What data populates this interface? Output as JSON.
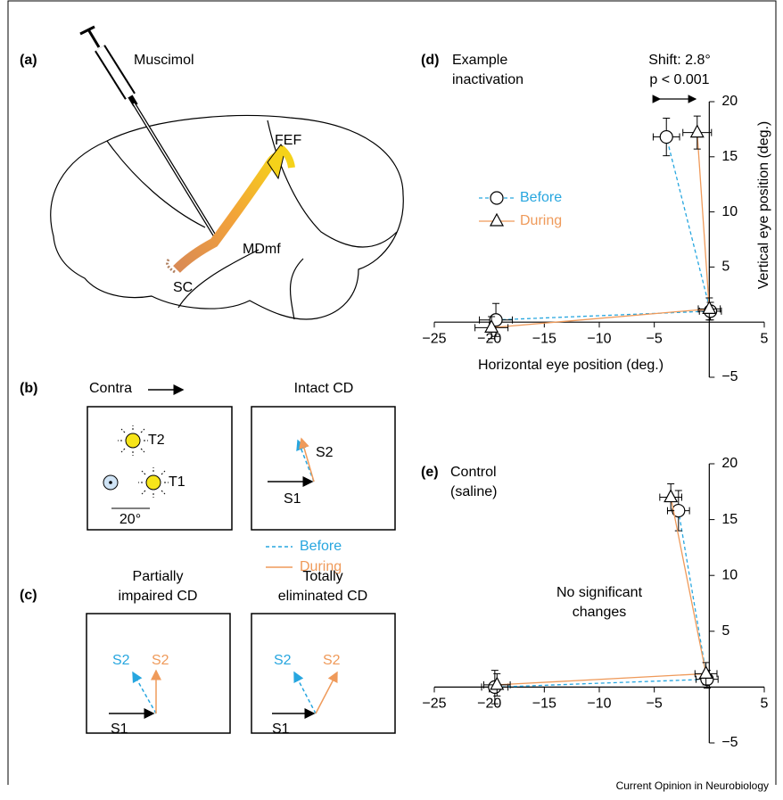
{
  "panel_a": {
    "label": "(a)",
    "drug": "Muscimol",
    "fef": "FEF",
    "mdmf": "MDmf",
    "sc": "SC"
  },
  "panel_b": {
    "label": "(b)",
    "direction": "Contra",
    "t2": "T2",
    "t1": "T1",
    "scale": "20°",
    "title": "Intact CD",
    "s2": "S2",
    "s1": "S1",
    "legend": [
      "Before",
      "During"
    ]
  },
  "panel_c": {
    "label": "(c)",
    "left_title": [
      "Partially",
      "impaired CD"
    ],
    "right_title": [
      "Totally",
      "eliminated CD"
    ],
    "left_s2": [
      "S2",
      "S2"
    ],
    "left_s1": "S1",
    "right_s2": [
      "S2",
      "S2"
    ],
    "right_s1": "S1"
  },
  "credit": "Current Opinion in Neurobiology",
  "chart_data": [
    {
      "type": "line",
      "label": "(d)",
      "title": [
        "Example",
        "inactivation"
      ],
      "annotation": [
        "Shift: 2.8°",
        "p < 0.001"
      ],
      "xlabel": "Horizontal eye position (deg.)",
      "ylabel": "Vertical eye position (deg.)",
      "xlim": [
        -25,
        5
      ],
      "ylim": [
        -5,
        20
      ],
      "xticks": [
        {
          "value": -25,
          "label": "−25"
        },
        {
          "value": -20,
          "label": "−20"
        },
        {
          "value": -15,
          "label": "−15"
        },
        {
          "value": -10,
          "label": "−10"
        },
        {
          "value": -5,
          "label": "−5"
        },
        5
      ],
      "yticks": [
        {
          "value": -5,
          "label": "−5"
        },
        5,
        10,
        15,
        20
      ],
      "legend": true,
      "series": [
        {
          "name": "Before",
          "color": "#27a6df",
          "marker": "circle",
          "dashed": true,
          "x": [
            -19.4,
            0.1,
            -3.9
          ],
          "values": [
            0.2,
            1.0,
            16.8
          ],
          "xerr": [
            1.5,
            1.0,
            1.2
          ],
          "yerr": [
            1.5,
            0.8,
            1.7
          ]
        },
        {
          "name": "During",
          "color": "#ef9a5a",
          "marker": "triangle",
          "dashed": false,
          "x": [
            -19.8,
            0,
            -1.1
          ],
          "values": [
            -0.5,
            1.2,
            17.2
          ],
          "xerr": [
            1.5,
            1.0,
            1.3
          ],
          "yerr": [
            1.0,
            1.0,
            1.5
          ]
        }
      ]
    },
    {
      "type": "line",
      "label": "(e)",
      "title": [
        "Control",
        "(saline)"
      ],
      "annotation": [
        "No significant",
        "changes"
      ],
      "xlim": [
        -25,
        5
      ],
      "ylim": [
        -5,
        20
      ],
      "xticks": [
        {
          "value": -25,
          "label": "−25"
        },
        {
          "value": -20,
          "label": "−20"
        },
        {
          "value": -15,
          "label": "−15"
        },
        {
          "value": -10,
          "label": "−10"
        },
        {
          "value": -5,
          "label": "−5"
        },
        5
      ],
      "yticks": [
        {
          "value": -5,
          "label": "−5"
        },
        5,
        10,
        15,
        20
      ],
      "legend": false,
      "series": [
        {
          "name": "Before",
          "color": "#27a6df",
          "marker": "circle",
          "dashed": true,
          "x": [
            -19.5,
            -0.2,
            -2.8
          ],
          "values": [
            0,
            0.7,
            15.8
          ],
          "xerr": [
            1.2,
            1.0,
            1.0
          ],
          "yerr": [
            1.5,
            0.8,
            1.8
          ]
        },
        {
          "name": "During",
          "color": "#ef9a5a",
          "marker": "triangle",
          "dashed": false,
          "x": [
            -19.3,
            -0.3,
            -3.5
          ],
          "values": [
            0.2,
            1.2,
            17.0
          ],
          "xerr": [
            1.2,
            1.0,
            1.0
          ],
          "yerr": [
            1.0,
            1.0,
            1.2
          ]
        }
      ]
    }
  ]
}
